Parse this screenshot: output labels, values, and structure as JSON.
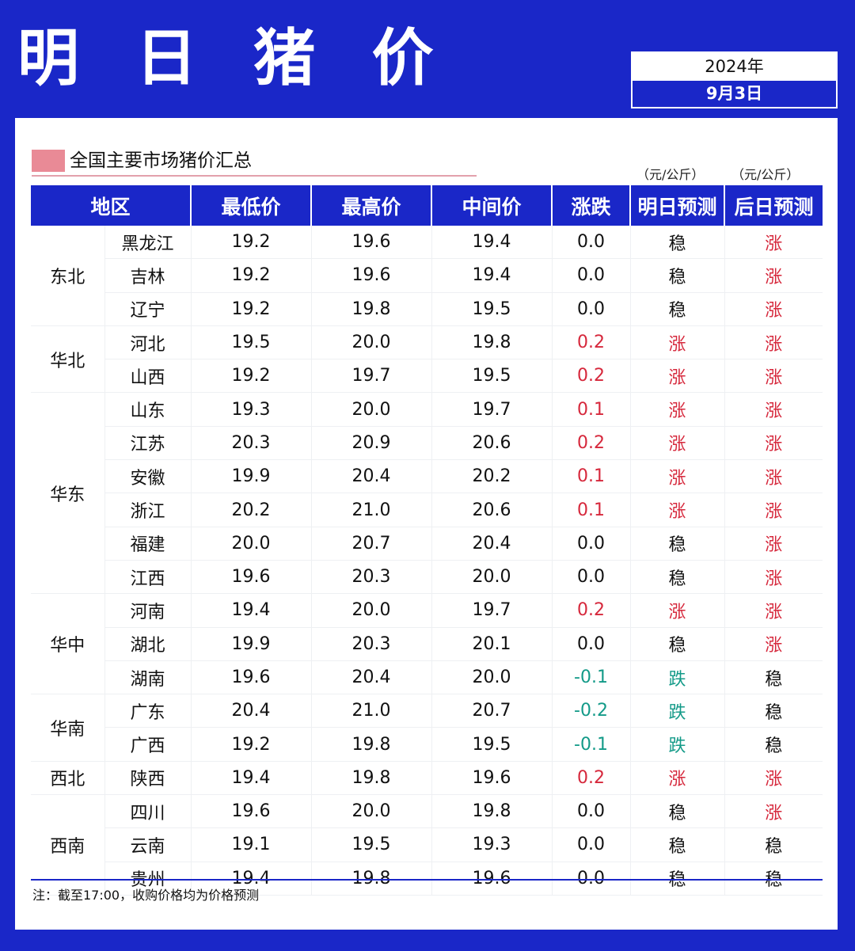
{
  "header": {
    "title": "明 日 猪 价",
    "year": "2024年",
    "date": "9月3日"
  },
  "section": {
    "title": "全国主要市场猪价汇总",
    "unit_tomorrow": "（元/公斤）",
    "unit_dayafter": "（元/公斤）"
  },
  "columns": [
    "地区",
    "最低价",
    "最高价",
    "中间价",
    "涨跌",
    "明日预测",
    "后日预测"
  ],
  "colors": {
    "up": "#d6283c",
    "down": "#139a88",
    "brand": "#1a27c8"
  },
  "groups": [
    {
      "region": "东北",
      "rows": [
        {
          "province": "黑龙江",
          "low": "19.2",
          "high": "19.6",
          "mid": "19.4",
          "change": "0.0",
          "tomorrow": "稳",
          "dayafter": "涨"
        },
        {
          "province": "吉林",
          "low": "19.2",
          "high": "19.6",
          "mid": "19.4",
          "change": "0.0",
          "tomorrow": "稳",
          "dayafter": "涨"
        },
        {
          "province": "辽宁",
          "low": "19.2",
          "high": "19.8",
          "mid": "19.5",
          "change": "0.0",
          "tomorrow": "稳",
          "dayafter": "涨"
        }
      ]
    },
    {
      "region": "华北",
      "rows": [
        {
          "province": "河北",
          "low": "19.5",
          "high": "20.0",
          "mid": "19.8",
          "change": "0.2",
          "tomorrow": "涨",
          "dayafter": "涨"
        },
        {
          "province": "山西",
          "low": "19.2",
          "high": "19.7",
          "mid": "19.5",
          "change": "0.2",
          "tomorrow": "涨",
          "dayafter": "涨"
        }
      ]
    },
    {
      "region": "华东",
      "rows": [
        {
          "province": "山东",
          "low": "19.3",
          "high": "20.0",
          "mid": "19.7",
          "change": "0.1",
          "tomorrow": "涨",
          "dayafter": "涨"
        },
        {
          "province": "江苏",
          "low": "20.3",
          "high": "20.9",
          "mid": "20.6",
          "change": "0.2",
          "tomorrow": "涨",
          "dayafter": "涨"
        },
        {
          "province": "安徽",
          "low": "19.9",
          "high": "20.4",
          "mid": "20.2",
          "change": "0.1",
          "tomorrow": "涨",
          "dayafter": "涨"
        },
        {
          "province": "浙江",
          "low": "20.2",
          "high": "21.0",
          "mid": "20.6",
          "change": "0.1",
          "tomorrow": "涨",
          "dayafter": "涨"
        },
        {
          "province": "福建",
          "low": "20.0",
          "high": "20.7",
          "mid": "20.4",
          "change": "0.0",
          "tomorrow": "稳",
          "dayafter": "涨"
        },
        {
          "province": "江西",
          "low": "19.6",
          "high": "20.3",
          "mid": "20.0",
          "change": "0.0",
          "tomorrow": "稳",
          "dayafter": "涨"
        }
      ]
    },
    {
      "region": "华中",
      "rows": [
        {
          "province": "河南",
          "low": "19.4",
          "high": "20.0",
          "mid": "19.7",
          "change": "0.2",
          "tomorrow": "涨",
          "dayafter": "涨"
        },
        {
          "province": "湖北",
          "low": "19.9",
          "high": "20.3",
          "mid": "20.1",
          "change": "0.0",
          "tomorrow": "稳",
          "dayafter": "涨"
        },
        {
          "province": "湖南",
          "low": "19.6",
          "high": "20.4",
          "mid": "20.0",
          "change": "-0.1",
          "tomorrow": "跌",
          "dayafter": "稳"
        }
      ]
    },
    {
      "region": "华南",
      "rows": [
        {
          "province": "广东",
          "low": "20.4",
          "high": "21.0",
          "mid": "20.7",
          "change": "-0.2",
          "tomorrow": "跌",
          "dayafter": "稳"
        },
        {
          "province": "广西",
          "low": "19.2",
          "high": "19.8",
          "mid": "19.5",
          "change": "-0.1",
          "tomorrow": "跌",
          "dayafter": "稳"
        }
      ]
    },
    {
      "region": "西北",
      "rows": [
        {
          "province": "陕西",
          "low": "19.4",
          "high": "19.8",
          "mid": "19.6",
          "change": "0.2",
          "tomorrow": "涨",
          "dayafter": "涨"
        }
      ]
    },
    {
      "region": "西南",
      "rows": [
        {
          "province": "四川",
          "low": "19.6",
          "high": "20.0",
          "mid": "19.8",
          "change": "0.0",
          "tomorrow": "稳",
          "dayafter": "涨"
        },
        {
          "province": "云南",
          "low": "19.1",
          "high": "19.5",
          "mid": "19.3",
          "change": "0.0",
          "tomorrow": "稳",
          "dayafter": "稳"
        },
        {
          "province": "贵州",
          "low": "19.4",
          "high": "19.8",
          "mid": "19.6",
          "change": "0.0",
          "tomorrow": "稳",
          "dayafter": "稳"
        }
      ]
    }
  ],
  "note": "注：截至17:00，收购价格均为价格预测"
}
